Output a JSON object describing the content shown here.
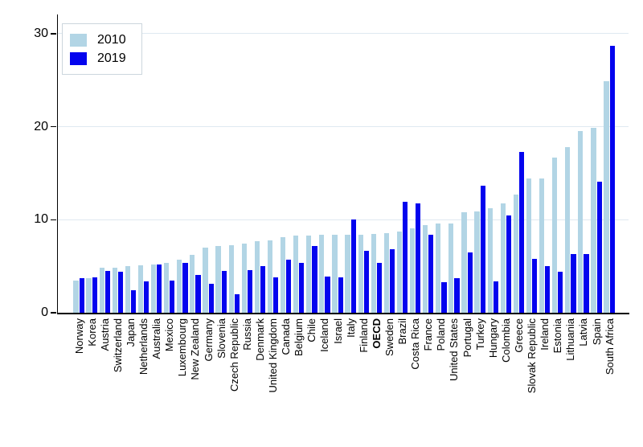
{
  "chart_data": {
    "type": "bar",
    "title": "",
    "xlabel": "",
    "ylabel": "",
    "ylim": [
      0,
      31.9
    ],
    "yticks": [
      0,
      10,
      20,
      30
    ],
    "grid": "horizontal",
    "legend_position": "top-left",
    "bold_category": "OECD",
    "categories": [
      "Norway",
      "Korea",
      "Austria",
      "Switzerland",
      "Japan",
      "Netherlands",
      "Australia",
      "Mexico",
      "Luxembourg",
      "New Zealand",
      "Germany",
      "Slovenia",
      "Czech Republic",
      "Russia",
      "Denmark",
      "United Kingdom",
      "Canada",
      "Belgium",
      "Chile",
      "Iceland",
      "Israel",
      "Italy",
      "Finland",
      "OECD",
      "Sweden",
      "Brazil",
      "Costa Rica",
      "France",
      "Poland",
      "United States",
      "Portugal",
      "Turkey",
      "Hungary",
      "Colombia",
      "Greece",
      "Slovak Republic",
      "Ireland",
      "Estonia",
      "Lithuania",
      "Latvia",
      "Spain",
      "South Africa"
    ],
    "series": [
      {
        "name": "2010",
        "color": "#b2d5e5",
        "values": [
          3.5,
          3.7,
          4.8,
          4.8,
          5.0,
          5.1,
          5.2,
          5.4,
          5.7,
          6.2,
          7.0,
          7.2,
          7.3,
          7.4,
          7.7,
          7.8,
          8.1,
          8.3,
          8.3,
          8.4,
          8.4,
          8.4,
          8.4,
          8.5,
          8.6,
          8.7,
          9.1,
          9.4,
          9.6,
          9.6,
          10.8,
          10.9,
          11.2,
          11.8,
          12.7,
          14.4,
          14.4,
          16.7,
          17.8,
          19.5,
          19.9,
          24.9
        ]
      },
      {
        "name": "2019",
        "color": "#0404ee",
        "values": [
          3.7,
          3.8,
          4.5,
          4.4,
          2.4,
          3.4,
          5.2,
          3.5,
          5.4,
          4.1,
          3.1,
          4.5,
          2.0,
          4.6,
          5.0,
          3.8,
          5.7,
          5.4,
          7.2,
          3.9,
          3.8,
          10.0,
          6.7,
          5.4,
          6.8,
          11.9,
          11.8,
          8.4,
          3.3,
          3.7,
          6.5,
          13.7,
          3.4,
          10.5,
          17.3,
          5.8,
          5.0,
          4.4,
          6.3,
          6.3,
          14.1,
          28.7
        ]
      }
    ]
  },
  "legend": {
    "item1": "2010",
    "item2": "2019"
  }
}
